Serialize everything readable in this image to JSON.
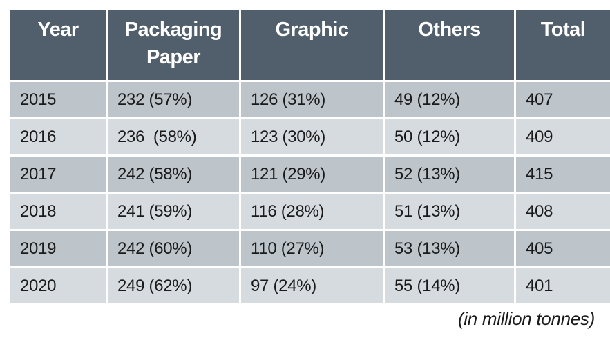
{
  "chart_data": {
    "type": "table",
    "columns": [
      "Year",
      "Packaging Paper",
      "Graphic",
      "Others",
      "Total"
    ],
    "rows": [
      {
        "year": "2015",
        "packaging": "232 (57%)",
        "graphic": "126 (31%)",
        "others": "49 (12%)",
        "total": "407"
      },
      {
        "year": "2016",
        "packaging": "236  (58%)",
        "graphic": "123 (30%)",
        "others": "50 (12%)",
        "total": "409"
      },
      {
        "year": "2017",
        "packaging": "242 (58%)",
        "graphic": "121 (29%)",
        "others": "52 (13%)",
        "total": "415"
      },
      {
        "year": "2018",
        "packaging": "241 (59%)",
        "graphic": "116 (28%)",
        "others": "51 (13%)",
        "total": "408"
      },
      {
        "year": "2019",
        "packaging": "242 (60%)",
        "graphic": "110 (27%)",
        "others": "53 (13%)",
        "total": "405"
      },
      {
        "year": "2020",
        "packaging": "249 (62%)",
        "graphic": "97 (24%)",
        "others": "55 (14%)",
        "total": "401"
      }
    ],
    "unit_note": "(in million tonnes)"
  },
  "colors": {
    "header_bg": "#505f6b",
    "row_dark": "#bdc5cb",
    "row_light": "#d6dbdf"
  }
}
